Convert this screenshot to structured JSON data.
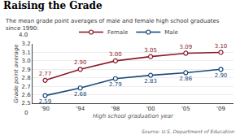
{
  "chart_data": {
    "type": "line",
    "title": "Raising the Grade",
    "subtitle": "The mean grade point averages of male and female high school graduates\nsince 1990:",
    "xlabel": "High school graduation year",
    "ylabel": "Grade point average",
    "source": "Source: U.S. Department of Education",
    "categories": [
      "'90",
      "'94",
      "'98",
      "'00",
      "'05",
      "'09"
    ],
    "series": [
      {
        "name": "Female",
        "color": "#8B1A2A",
        "marker": "circle",
        "values": [
          2.77,
          2.9,
          3.0,
          3.05,
          3.09,
          3.1
        ],
        "value_labels": [
          "2.77",
          "2.90",
          "3.00",
          "3.05",
          "3.09",
          "3.10"
        ]
      },
      {
        "name": "Male",
        "color": "#1A4A7A",
        "marker": "circle",
        "values": [
          2.59,
          2.68,
          2.79,
          2.83,
          2.86,
          2.9
        ],
        "value_labels": [
          "2.59",
          "2.68",
          "2.79",
          "2.83",
          "2.86",
          "2.90"
        ]
      }
    ],
    "ylim": [
      2.5,
      3.2
    ],
    "yticks": [
      2.5,
      2.6,
      2.7,
      2.8,
      2.9,
      {
        "value": 3.0,
        "label": "3.0"
      },
      3.1,
      3.2
    ],
    "grid": true,
    "legend": "upper left",
    "data_labels": true,
    "annotations": [
      "4.0",
      "0"
    ]
  }
}
